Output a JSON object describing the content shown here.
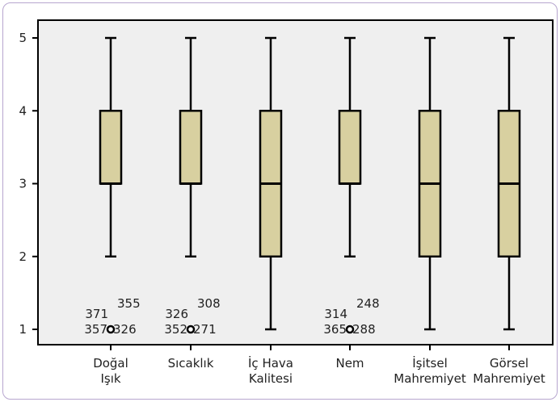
{
  "chart_data": {
    "type": "boxplot",
    "ylim": [
      1,
      5
    ],
    "yticks": [
      "1",
      "2",
      "3",
      "4",
      "5"
    ],
    "categories": [
      {
        "label_lines": [
          "Doğal",
          "Işık"
        ],
        "min": 2,
        "q1": 3,
        "median": 3,
        "q3": 4,
        "max": 5,
        "outliers": [
          {
            "value": 1,
            "labels": [
              "355",
              "371",
              "357",
              "326"
            ]
          }
        ]
      },
      {
        "label_lines": [
          "Sıcaklık"
        ],
        "min": 2,
        "q1": 3,
        "median": 3,
        "q3": 4,
        "max": 5,
        "outliers": [
          {
            "value": 1,
            "labels": [
              "308",
              "326",
              "352",
              "271"
            ]
          }
        ]
      },
      {
        "label_lines": [
          "İç Hava",
          "Kalitesi"
        ],
        "min": 1,
        "q1": 2,
        "median": 3,
        "q3": 4,
        "max": 5,
        "outliers": []
      },
      {
        "label_lines": [
          "Nem"
        ],
        "min": 2,
        "q1": 3,
        "median": 3,
        "q3": 4,
        "max": 5,
        "outliers": [
          {
            "value": 1,
            "labels": [
              "248",
              "314",
              "365",
              "288"
            ]
          }
        ]
      },
      {
        "label_lines": [
          "İşitsel",
          "Mahremiyet"
        ],
        "min": 1,
        "q1": 2,
        "median": 3,
        "q3": 4,
        "max": 5,
        "outliers": []
      },
      {
        "label_lines": [
          "Görsel",
          "Mahremiyet"
        ],
        "min": 1,
        "q1": 2,
        "median": 3,
        "q3": 4,
        "max": 5,
        "outliers": []
      }
    ],
    "grid": false,
    "colors": {
      "box_fill": "#d8d0a0",
      "plot_bg": "#efefef",
      "stroke": "#000000"
    }
  }
}
